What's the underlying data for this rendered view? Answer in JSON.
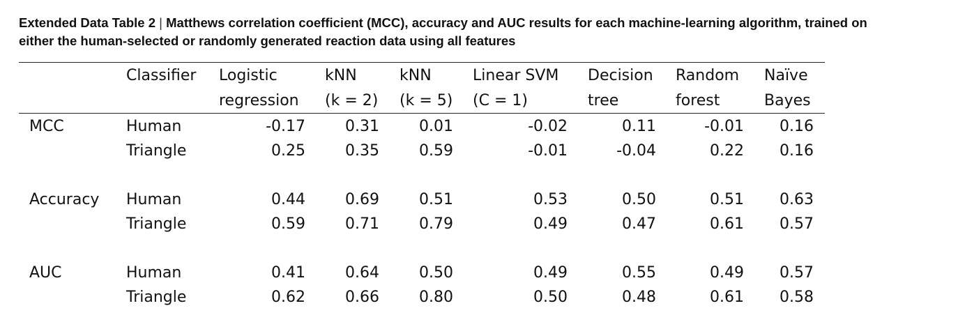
{
  "caption": {
    "label": "Extended Data Table 2",
    "separator": "|",
    "text_line1": "Matthews correlation coefficient (MCC), accuracy and AUC results for each machine-learning algorithm, trained on",
    "text_line2": "either the human-selected or randomly generated reaction data using all features"
  },
  "table": {
    "header": {
      "classifier": "Classifier",
      "columns": [
        {
          "line1": "Logistic",
          "line2": "regression"
        },
        {
          "line1": "kNN",
          "line2": "(k = 2)"
        },
        {
          "line1": "kNN",
          "line2": "(k = 5)"
        },
        {
          "line1": "Linear SVM",
          "line2": "(C = 1)"
        },
        {
          "line1": "Decision",
          "line2": "tree"
        },
        {
          "line1": "Random",
          "line2": "forest"
        },
        {
          "line1": "Naïve",
          "line2": "Bayes"
        }
      ]
    },
    "groups": [
      {
        "metric": "MCC",
        "rows": [
          {
            "dataset": "Human",
            "values": [
              "-0.17",
              "0.31",
              "0.01",
              "-0.02",
              "0.11",
              "-0.01",
              "0.16"
            ]
          },
          {
            "dataset": "Triangle",
            "values": [
              "0.25",
              "0.35",
              "0.59",
              "-0.01",
              "-0.04",
              "0.22",
              "0.16"
            ]
          }
        ]
      },
      {
        "metric": "Accuracy",
        "rows": [
          {
            "dataset": "Human",
            "values": [
              "0.44",
              "0.69",
              "0.51",
              "0.53",
              "0.50",
              "0.51",
              "0.63"
            ]
          },
          {
            "dataset": "Triangle",
            "values": [
              "0.59",
              "0.71",
              "0.79",
              "0.49",
              "0.47",
              "0.61",
              "0.57"
            ]
          }
        ]
      },
      {
        "metric": "AUC",
        "rows": [
          {
            "dataset": "Human",
            "values": [
              "0.41",
              "0.64",
              "0.50",
              "0.49",
              "0.55",
              "0.49",
              "0.57"
            ]
          },
          {
            "dataset": "Triangle",
            "values": [
              "0.62",
              "0.66",
              "0.80",
              "0.50",
              "0.48",
              "0.61",
              "0.58"
            ]
          }
        ]
      }
    ]
  }
}
